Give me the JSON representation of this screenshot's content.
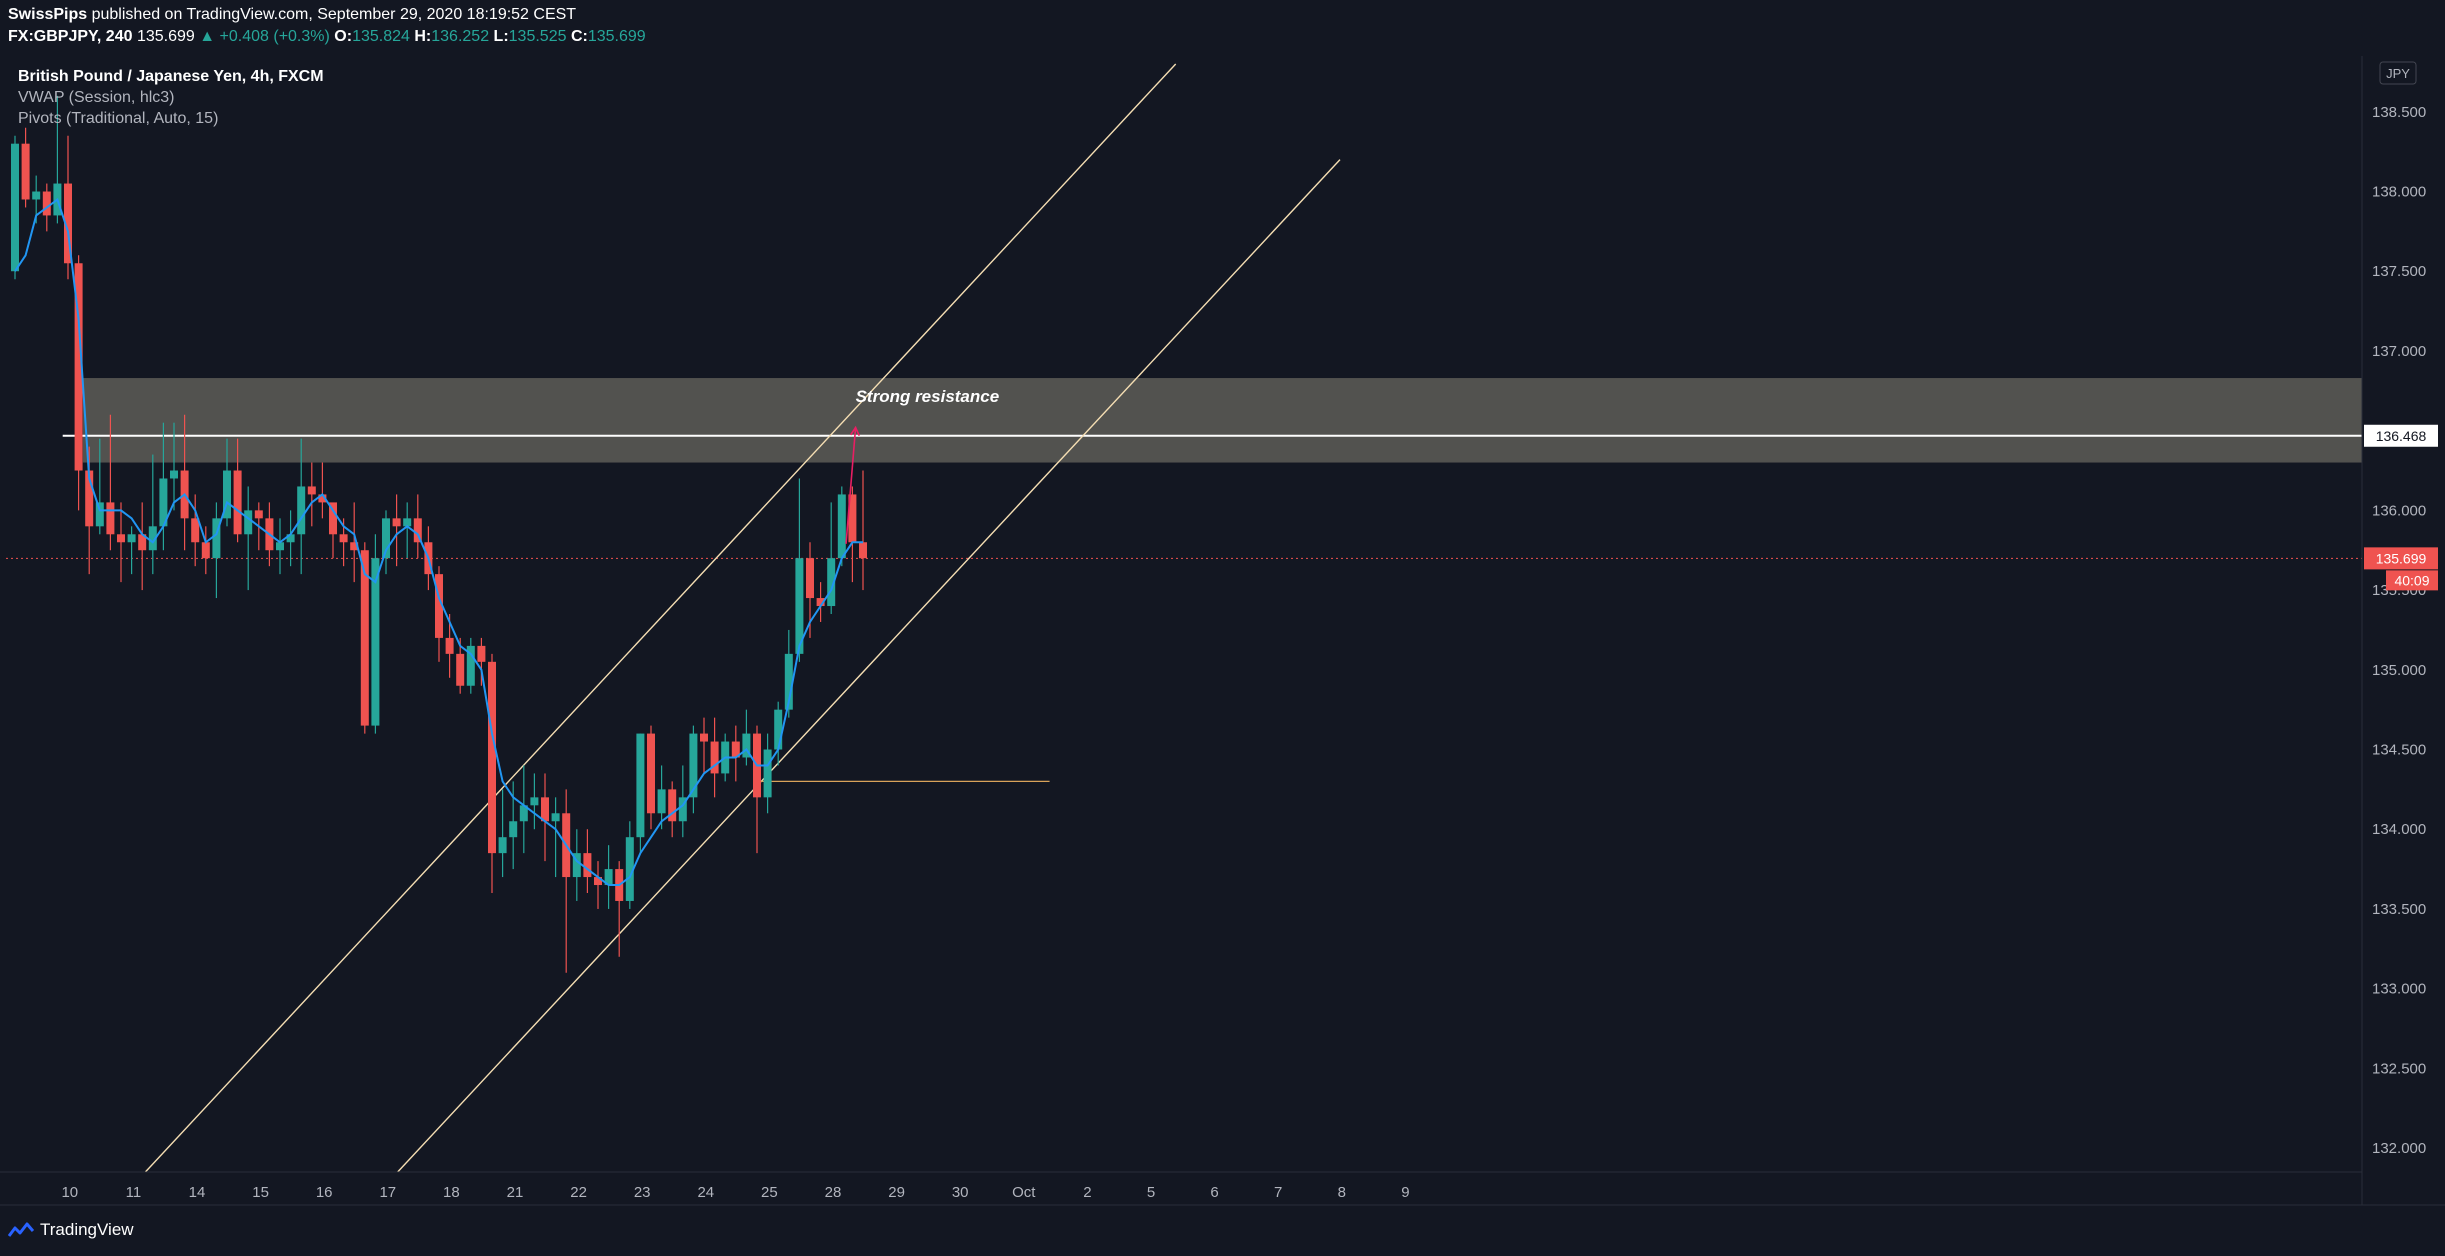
{
  "header": {
    "author": "SwissPips",
    "published_text": "published on TradingView.com, September 29, 2020 18:19:52 CEST",
    "symbol": "FX:GBPJPY, 240",
    "last": "135.699",
    "change": "▲ +0.408 (+0.3%)",
    "o_label": "O:",
    "o_value": "135.824",
    "h_label": "H:",
    "h_value": "136.252",
    "l_label": "L:",
    "l_value": "135.525",
    "c_label": "C:",
    "c_value": "135.699"
  },
  "legend": {
    "title": "British Pound / Japanese Yen, 4h, FXCM",
    "indicator1": "VWAP (Session, hlc3)",
    "indicator2": "Pivots (Traditional, Auto, 15)"
  },
  "footer": {
    "brand": "TradingView"
  },
  "colors": {
    "background": "#131722",
    "up": "#26a69a",
    "down": "#ef5350",
    "vwap": "#2196f3",
    "channel": "#f5deb3",
    "zone": "#7d7a6e",
    "resistance_line": "#ffffff",
    "arrow": "#e91e63"
  },
  "chart_data": {
    "type": "candlestick",
    "currency": "JPY",
    "ylim": [
      131.85,
      138.85
    ],
    "y_ticks": [
      "138.500",
      "138.000",
      "137.500",
      "137.000",
      "136.500",
      "136.000",
      "135.500",
      "135.000",
      "134.500",
      "134.000",
      "133.500",
      "133.000",
      "132.500",
      "132.000"
    ],
    "y_tick_values": [
      138.5,
      138.0,
      137.5,
      137.0,
      136.5,
      136.0,
      135.5,
      135.0,
      134.5,
      134.0,
      133.5,
      133.0,
      132.5,
      132.0
    ],
    "x_ticks": [
      {
        "label": "10",
        "bar": 3
      },
      {
        "label": "11",
        "bar": 9
      },
      {
        "label": "14",
        "bar": 15
      },
      {
        "label": "15",
        "bar": 21
      },
      {
        "label": "16",
        "bar": 27
      },
      {
        "label": "17",
        "bar": 33
      },
      {
        "label": "18",
        "bar": 39
      },
      {
        "label": "21",
        "bar": 45
      },
      {
        "label": "22",
        "bar": 51
      },
      {
        "label": "23",
        "bar": 57
      },
      {
        "label": "24",
        "bar": 63
      },
      {
        "label": "25",
        "bar": 69
      },
      {
        "label": "28",
        "bar": 75
      },
      {
        "label": "29",
        "bar": 81
      },
      {
        "label": "30",
        "bar": 87
      },
      {
        "label": "Oct",
        "bar": 93
      },
      {
        "label": "2",
        "bar": 99
      },
      {
        "label": "5",
        "bar": 105
      },
      {
        "label": "6",
        "bar": 111
      },
      {
        "label": "7",
        "bar": 117
      },
      {
        "label": "8",
        "bar": 123
      },
      {
        "label": "9",
        "bar": 129
      }
    ],
    "candles": [
      [
        137.5,
        138.3,
        138.35,
        137.45
      ],
      [
        138.3,
        137.95,
        138.4,
        137.9
      ],
      [
        137.95,
        138.0,
        138.1,
        137.8
      ],
      [
        138.0,
        137.85,
        138.05,
        137.75
      ],
      [
        137.85,
        138.05,
        138.6,
        137.8
      ],
      [
        138.05,
        137.55,
        138.35,
        137.45
      ],
      [
        137.55,
        136.25,
        137.6,
        136.0
      ],
      [
        136.25,
        135.9,
        136.4,
        135.6
      ],
      [
        135.9,
        136.05,
        136.45,
        135.85
      ],
      [
        136.05,
        135.85,
        136.6,
        135.75
      ],
      [
        135.85,
        135.8,
        136.05,
        135.55
      ],
      [
        135.8,
        135.85,
        135.9,
        135.6
      ],
      [
        135.85,
        135.75,
        136.05,
        135.5
      ],
      [
        135.75,
        135.9,
        136.35,
        135.6
      ],
      [
        135.9,
        136.2,
        136.55,
        135.75
      ],
      [
        136.2,
        136.25,
        136.55,
        136.0
      ],
      [
        136.25,
        135.95,
        136.6,
        135.75
      ],
      [
        135.95,
        135.8,
        136.1,
        135.65
      ],
      [
        135.8,
        135.7,
        135.9,
        135.6
      ],
      [
        135.7,
        135.95,
        136.05,
        135.45
      ],
      [
        135.95,
        136.25,
        136.45,
        135.9
      ],
      [
        136.25,
        135.85,
        136.45,
        135.8
      ],
      [
        135.85,
        136.0,
        136.15,
        135.5
      ],
      [
        136.0,
        135.95,
        136.05,
        135.75
      ],
      [
        135.95,
        135.75,
        136.05,
        135.65
      ],
      [
        135.75,
        135.8,
        135.95,
        135.6
      ],
      [
        135.8,
        135.85,
        136.0,
        135.65
      ],
      [
        135.85,
        136.15,
        136.45,
        135.6
      ],
      [
        136.15,
        136.1,
        136.3,
        135.9
      ],
      [
        136.1,
        136.05,
        136.3,
        135.95
      ],
      [
        136.05,
        135.85,
        136.0,
        135.7
      ],
      [
        135.85,
        135.8,
        135.95,
        135.65
      ],
      [
        135.8,
        135.75,
        136.05,
        135.55
      ],
      [
        135.75,
        134.65,
        135.8,
        134.6
      ],
      [
        134.65,
        135.7,
        135.85,
        134.6
      ],
      [
        135.7,
        135.95,
        136.0,
        135.6
      ],
      [
        135.95,
        135.9,
        136.1,
        135.65
      ],
      [
        135.9,
        135.95,
        136.05,
        135.7
      ],
      [
        135.95,
        135.8,
        136.1,
        135.7
      ],
      [
        135.8,
        135.6,
        135.9,
        135.5
      ],
      [
        135.6,
        135.2,
        135.65,
        135.05
      ],
      [
        135.2,
        135.1,
        135.35,
        134.95
      ],
      [
        135.1,
        134.9,
        135.2,
        134.85
      ],
      [
        134.9,
        135.15,
        135.2,
        134.85
      ],
      [
        135.15,
        135.05,
        135.2,
        134.9
      ],
      [
        135.05,
        133.85,
        135.1,
        133.6
      ],
      [
        133.85,
        133.95,
        134.25,
        133.7
      ],
      [
        133.95,
        134.05,
        134.3,
        133.75
      ],
      [
        134.05,
        134.15,
        134.4,
        133.85
      ],
      [
        134.15,
        134.2,
        134.35,
        134.0
      ],
      [
        134.2,
        134.05,
        134.35,
        133.8
      ],
      [
        134.05,
        134.1,
        134.2,
        133.7
      ],
      [
        134.1,
        133.7,
        134.25,
        133.1
      ],
      [
        133.7,
        133.85,
        134.0,
        133.55
      ],
      [
        133.85,
        133.7,
        134.0,
        133.6
      ],
      [
        133.7,
        133.65,
        133.8,
        133.5
      ],
      [
        133.65,
        133.75,
        133.9,
        133.5
      ],
      [
        133.75,
        133.55,
        133.8,
        133.2
      ],
      [
        133.55,
        133.95,
        134.05,
        133.5
      ],
      [
        133.95,
        134.6,
        134.6,
        133.85
      ],
      [
        134.6,
        134.1,
        134.65,
        134.0
      ],
      [
        134.1,
        134.25,
        134.4,
        134.0
      ],
      [
        134.25,
        134.05,
        134.3,
        133.95
      ],
      [
        134.05,
        134.2,
        134.4,
        133.95
      ],
      [
        134.2,
        134.6,
        134.65,
        134.1
      ],
      [
        134.6,
        134.55,
        134.7,
        134.35
      ],
      [
        134.55,
        134.35,
        134.7,
        134.2
      ],
      [
        134.35,
        134.55,
        134.6,
        134.3
      ],
      [
        134.55,
        134.45,
        134.65,
        134.3
      ],
      [
        134.45,
        134.6,
        134.75,
        134.4
      ],
      [
        134.6,
        134.2,
        134.65,
        133.85
      ],
      [
        134.2,
        134.5,
        134.6,
        134.1
      ],
      [
        134.5,
        134.75,
        134.8,
        134.4
      ],
      [
        134.75,
        135.1,
        135.25,
        134.7
      ],
      [
        135.1,
        135.7,
        136.2,
        135.05
      ],
      [
        135.7,
        135.45,
        135.8,
        135.2
      ],
      [
        135.45,
        135.4,
        135.55,
        135.3
      ],
      [
        135.4,
        135.7,
        136.05,
        135.35
      ],
      [
        135.7,
        136.1,
        136.15,
        135.65
      ],
      [
        136.1,
        135.8,
        136.15,
        135.55
      ],
      [
        135.8,
        135.7,
        136.25,
        135.5
      ]
    ],
    "vwap": [
      [
        0,
        137.5
      ],
      [
        1,
        137.6
      ],
      [
        2,
        137.85
      ],
      [
        3,
        137.9
      ],
      [
        4,
        137.95
      ],
      [
        5,
        137.75
      ],
      [
        6,
        137.2
      ],
      [
        7,
        136.2
      ],
      [
        8,
        136.0
      ],
      [
        9,
        136.0
      ],
      [
        10,
        136.0
      ],
      [
        11,
        135.95
      ],
      [
        12,
        135.85
      ],
      [
        13,
        135.8
      ],
      [
        14,
        135.9
      ],
      [
        15,
        136.05
      ],
      [
        16,
        136.1
      ],
      [
        17,
        136.0
      ],
      [
        18,
        135.8
      ],
      [
        19,
        135.85
      ],
      [
        20,
        136.05
      ],
      [
        21,
        136.0
      ],
      [
        22,
        135.95
      ],
      [
        23,
        135.9
      ],
      [
        24,
        135.85
      ],
      [
        25,
        135.8
      ],
      [
        26,
        135.85
      ],
      [
        27,
        135.95
      ],
      [
        28,
        136.05
      ],
      [
        29,
        136.1
      ],
      [
        30,
        136.0
      ],
      [
        31,
        135.9
      ],
      [
        32,
        135.85
      ],
      [
        33,
        135.6
      ],
      [
        34,
        135.55
      ],
      [
        35,
        135.75
      ],
      [
        36,
        135.85
      ],
      [
        37,
        135.9
      ],
      [
        38,
        135.85
      ],
      [
        39,
        135.7
      ],
      [
        40,
        135.45
      ],
      [
        41,
        135.3
      ],
      [
        42,
        135.15
      ],
      [
        43,
        135.1
      ],
      [
        44,
        135.0
      ],
      [
        45,
        134.6
      ],
      [
        46,
        134.3
      ],
      [
        47,
        134.2
      ],
      [
        48,
        134.15
      ],
      [
        49,
        134.1
      ],
      [
        50,
        134.05
      ],
      [
        51,
        134.0
      ],
      [
        52,
        133.9
      ],
      [
        53,
        133.8
      ],
      [
        54,
        133.75
      ],
      [
        55,
        133.7
      ],
      [
        56,
        133.65
      ],
      [
        57,
        133.65
      ],
      [
        58,
        133.7
      ],
      [
        59,
        133.85
      ],
      [
        60,
        133.95
      ],
      [
        61,
        134.05
      ],
      [
        62,
        134.1
      ],
      [
        63,
        134.15
      ],
      [
        64,
        134.25
      ],
      [
        65,
        134.35
      ],
      [
        66,
        134.4
      ],
      [
        67,
        134.45
      ],
      [
        68,
        134.45
      ],
      [
        69,
        134.5
      ],
      [
        70,
        134.4
      ],
      [
        71,
        134.4
      ],
      [
        72,
        134.5
      ],
      [
        73,
        134.8
      ],
      [
        74,
        135.15
      ],
      [
        75,
        135.3
      ],
      [
        76,
        135.4
      ],
      [
        77,
        135.5
      ],
      [
        78,
        135.7
      ],
      [
        79,
        135.8
      ],
      [
        80,
        135.8
      ]
    ],
    "resistance_level": 136.468,
    "resistance_label": "136.468",
    "zone": [
      136.3,
      136.83
    ],
    "channel_upper": [
      [
        12.3,
        131.85
      ],
      [
        109.5,
        138.8
      ]
    ],
    "channel_lower": [
      [
        36.1,
        131.85
      ],
      [
        125,
        138.2
      ]
    ],
    "horizontal_line": {
      "from_bar": 69.7,
      "to_bar": 97.6,
      "price": 134.3
    },
    "arrow": {
      "from": [
        78.4,
        135.79
      ],
      "to": [
        79.3,
        136.52
      ]
    },
    "annotation": "Strong resistance",
    "annotation_pos": [
      79.3,
      136.68
    ],
    "last_price": "135.699",
    "last_price_value": 135.699,
    "countdown": "40:09"
  }
}
